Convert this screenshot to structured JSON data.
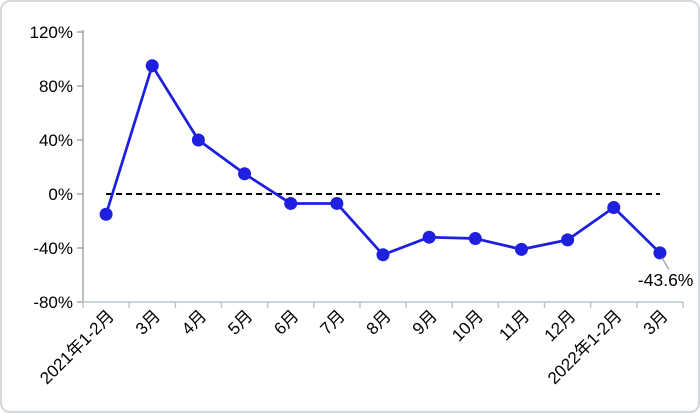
{
  "chart_data": {
    "type": "line",
    "title": "",
    "xlabel": "",
    "ylabel": "",
    "categories": [
      "2021年1-2月",
      "3月",
      "4月",
      "5月",
      "6月",
      "7月",
      "8月",
      "9月",
      "10月",
      "11月",
      "12月",
      "2022年1-2月",
      "3月"
    ],
    "values": [
      -15,
      95,
      40,
      15,
      -7,
      -7,
      -45,
      -32,
      -33,
      -41,
      -34,
      -10,
      -43.6
    ],
    "y_axis": {
      "tick_labels": [
        "120%",
        "80%",
        "40%",
        "0%",
        "-40%",
        "-80%"
      ],
      "tick_values": [
        120,
        80,
        40,
        0,
        -40,
        -80
      ]
    },
    "ylim": [
      -80,
      120
    ],
    "grid": false,
    "legend": "none",
    "zero_line": {
      "style": "dashed",
      "value": 0
    },
    "annotation": {
      "text": "-43.6%",
      "point_index": 12
    },
    "colors": {
      "line": "#1f1fe0",
      "marker": "#1f1fe0",
      "zero_line": "#000000",
      "y_axis": "#a6a6a6",
      "x_axis": "#b9c6ce",
      "text": "#000000",
      "leader": "#9aa0a4",
      "border": "#d6d9db",
      "background": "#ffffff"
    }
  }
}
